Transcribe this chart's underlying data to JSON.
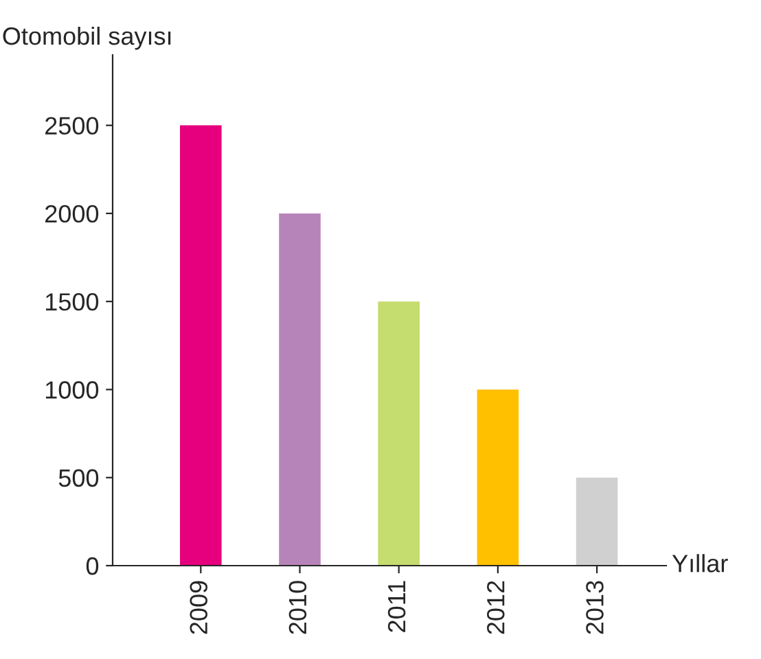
{
  "chart_data": {
    "type": "bar",
    "xlabel": "Yıllar",
    "ylabel": "Otomobil sayısı",
    "categories": [
      "2009",
      "2010",
      "2011",
      "2012",
      "2013"
    ],
    "values": [
      2500,
      2000,
      1500,
      1000,
      500
    ],
    "colors": [
      "#e6007e",
      "#b784b9",
      "#c5dc6e",
      "#ffc000",
      "#d0d0d0"
    ],
    "ylim": [
      0,
      2900
    ],
    "yticks": [
      0,
      500,
      1000,
      1500,
      2000,
      2500
    ],
    "grid": false,
    "legend": false
  }
}
